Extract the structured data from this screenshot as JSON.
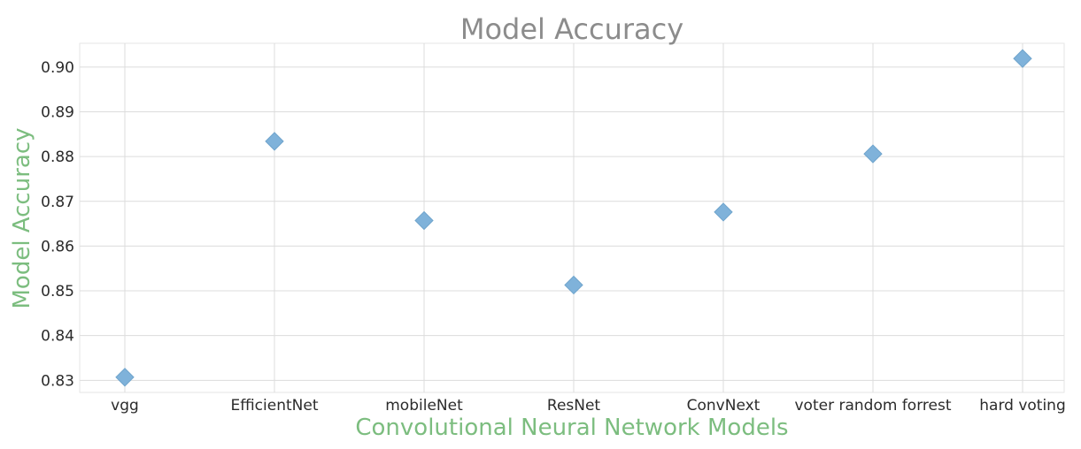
{
  "chart_data": {
    "type": "scatter",
    "title": "Model Accuracy",
    "xlabel": "Convolutional Neural Network Models",
    "ylabel": "Model Accuracy",
    "categories": [
      "vgg",
      "EfficientNet",
      "mobileNet",
      "ResNet",
      "ConvNext",
      "voter random forrest",
      "hard voting"
    ],
    "values": [
      0.8307,
      0.8834,
      0.8657,
      0.8513,
      0.8676,
      0.8806,
      0.9019
    ],
    "y_ticks": [
      "0.83",
      "0.84",
      "0.85",
      "0.86",
      "0.87",
      "0.88",
      "0.89",
      "0.90"
    ],
    "ylim": [
      0.8273,
      0.9053
    ],
    "marker": "diamond",
    "grid": true,
    "colors": {
      "marker": "#7fb2da",
      "title": "#8c8c8c",
      "axis_label": "#7cbd7f"
    }
  }
}
